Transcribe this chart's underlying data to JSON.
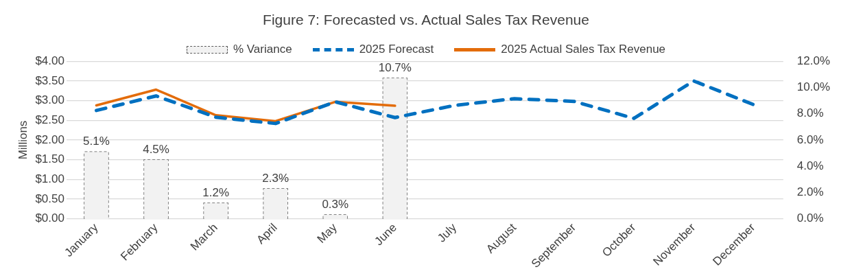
{
  "chart_data": {
    "type": "line",
    "title": "Figure 7: Forecasted vs. Actual Sales Tax Revenue",
    "ylabel": "Millions",
    "categories": [
      "January",
      "February",
      "March",
      "April",
      "May",
      "June",
      "July",
      "August",
      "September",
      "October",
      "November",
      "December"
    ],
    "series": [
      {
        "name": "% Variance",
        "type": "bar",
        "axis": "y2",
        "color": "#f2f2f2",
        "line_style": "dashed",
        "values": [
          5.1,
          4.5,
          1.2,
          2.3,
          0.3,
          10.7,
          null,
          null,
          null,
          null,
          null,
          null
        ],
        "value_labels": [
          "5.1%",
          "4.5%",
          "1.2%",
          "2.3%",
          "0.3%",
          "10.7%",
          null,
          null,
          null,
          null,
          null,
          null
        ]
      },
      {
        "name": "2025 Forecast",
        "color": "#0070c0",
        "line_style": "dashed",
        "values": [
          2.75,
          3.12,
          2.58,
          2.42,
          2.97,
          2.57,
          2.88,
          3.05,
          2.98,
          2.55,
          3.5,
          2.9
        ]
      },
      {
        "name": "2025 Actual Sales Tax Revenue",
        "color": "#e36c0a",
        "line_style": "solid",
        "values": [
          2.88,
          3.28,
          2.63,
          2.48,
          2.97,
          2.87,
          null,
          null,
          null,
          null,
          null,
          null
        ]
      }
    ],
    "ylim": [
      0,
      4
    ],
    "yticks": [
      {
        "value": 0,
        "label": "$0.00"
      },
      {
        "value": 0.5,
        "label": "$0.50"
      },
      {
        "value": 1,
        "label": "$1.00"
      },
      {
        "value": 1.5,
        "label": "$1.50"
      },
      {
        "value": 2,
        "label": "$2.00"
      },
      {
        "value": 2.5,
        "label": "$2.50"
      },
      {
        "value": 3,
        "label": "$3.00"
      },
      {
        "value": 3.5,
        "label": "$3.50"
      },
      {
        "value": 4,
        "label": "$4.00"
      }
    ],
    "y2lim": [
      0,
      12
    ],
    "y2ticks": [
      {
        "value": 0,
        "label": "0.0%"
      },
      {
        "value": 2,
        "label": "2.0%"
      },
      {
        "value": 4,
        "label": "4.0%"
      },
      {
        "value": 6,
        "label": "6.0%"
      },
      {
        "value": 8,
        "label": "8.0%"
      },
      {
        "value": 10,
        "label": "10.0%"
      },
      {
        "value": 12,
        "label": "12.0%"
      }
    ],
    "grid": "y",
    "legend": "top",
    "marker": "none"
  }
}
